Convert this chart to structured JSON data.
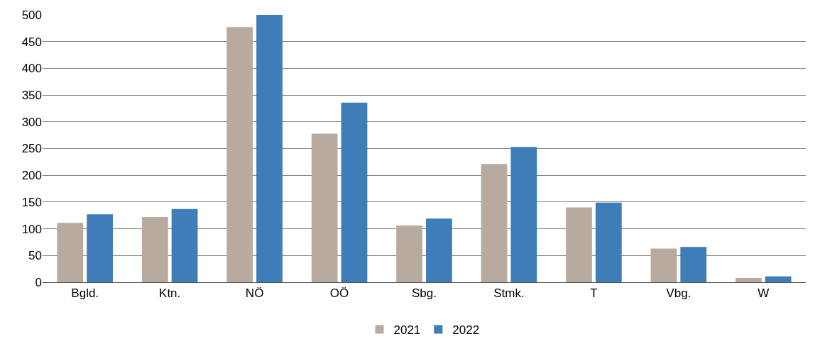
{
  "chart_data": {
    "type": "bar",
    "categories": [
      "Bgld.",
      "Ktn.",
      "NÖ",
      "OÖ",
      "Sbg.",
      "Stmk.",
      "T",
      "Vbg.",
      "W"
    ],
    "series": [
      {
        "name": "2021",
        "color": "#b8aa9e",
        "values": [
          111,
          122,
          477,
          278,
          106,
          221,
          140,
          63,
          8
        ]
      },
      {
        "name": "2022",
        "color": "#3f7db8",
        "values": [
          127,
          137,
          500,
          336,
          119,
          253,
          149,
          66,
          11
        ]
      }
    ],
    "ylim": [
      0,
      500
    ],
    "yticks": [
      0,
      50,
      100,
      150,
      200,
      250,
      300,
      350,
      400,
      450,
      500
    ],
    "grid": "y",
    "legend": "bottom"
  }
}
